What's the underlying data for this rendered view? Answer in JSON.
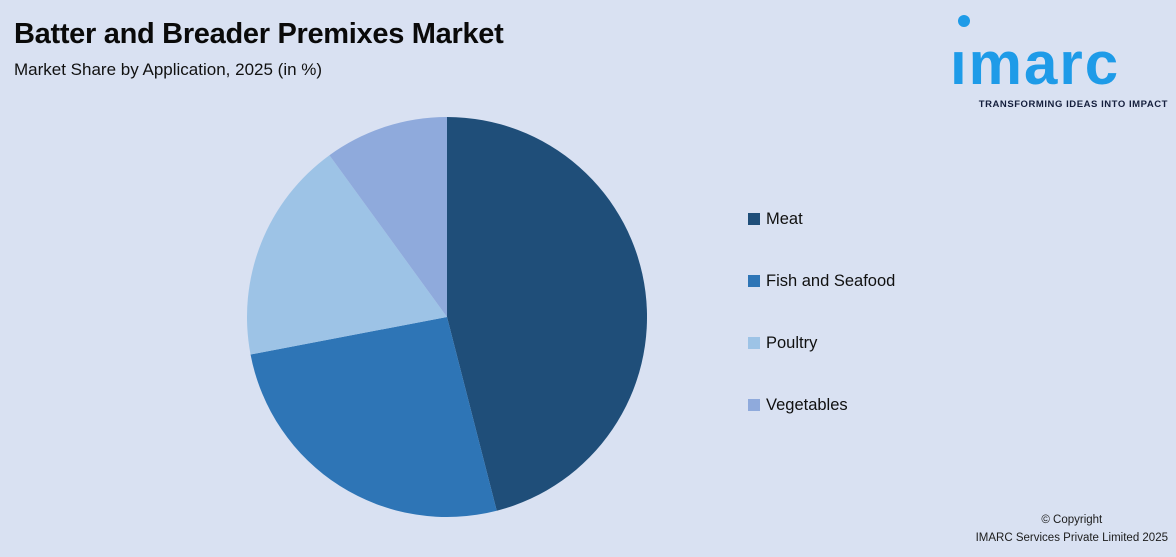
{
  "page": {
    "background": "#d9e1f2"
  },
  "header": {
    "title": "Batter and Breader Premixes Market",
    "subtitle": "Market Share by Application, 2025 (in %)"
  },
  "logo": {
    "brand": "ımarc",
    "tagline": "TRANSFORMING IDEAS INTO IMPACT",
    "brand_color": "#1e9be8",
    "tagline_color": "#141e3c"
  },
  "chart_data": {
    "type": "pie",
    "title": "Batter and Breader Premixes Market",
    "subtitle": "Market Share by Application, 2025 (in %)",
    "values_unit": "%",
    "start_angle_deg": 0,
    "direction": "clockwise",
    "legend_position": "right",
    "data_labels_shown": false,
    "segments": [
      {
        "label": "Meat",
        "value": 46,
        "color": "#1f4e79"
      },
      {
        "label": "Fish and Seafood",
        "value": 26,
        "color": "#2e75b6"
      },
      {
        "label": "Poultry",
        "value": 18,
        "color": "#9dc3e6"
      },
      {
        "label": "Vegetables",
        "value": 10,
        "color": "#8faadc"
      }
    ]
  },
  "footer": {
    "copyright_line1": "© Copyright",
    "copyright_line2": "IMARC Services Private Limited 2025"
  }
}
